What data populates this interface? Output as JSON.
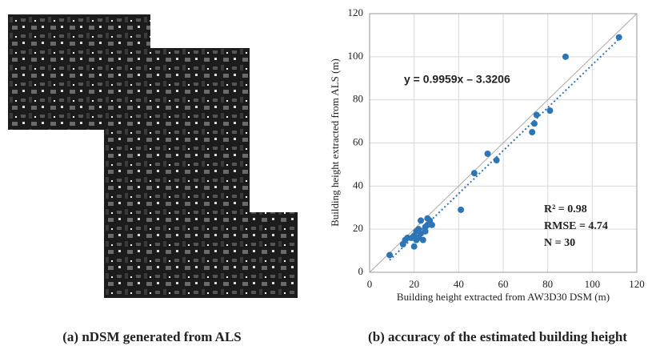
{
  "captions": [
    "(a) nDSM  generated from ALS",
    "(b) accuracy of the estimated building height"
  ],
  "chart_data": {
    "type": "scatter",
    "x_label": "Building height extracted from AW3D30 DSM (m)",
    "y_label": "Building height extracted from ALS (m)",
    "annotations": [
      "y = 0.9959x – 3.3206",
      "R² = 0.98",
      "RMSE = 4.74",
      "N = 30"
    ],
    "trendline": {
      "slope": 0.9959,
      "intercept": -3.3206,
      "color": "#2e75b6"
    },
    "series": [
      {
        "color": "#2e75b6",
        "x": [
          112,
          88,
          81,
          75,
          74,
          73,
          53,
          57,
          47,
          41,
          9,
          15,
          16,
          17,
          19,
          20,
          20,
          21,
          22,
          22,
          23,
          23,
          24,
          25,
          26,
          26,
          27,
          28,
          25,
          21
        ],
        "values": [
          109,
          100,
          75,
          73,
          69,
          65,
          55,
          52,
          46,
          29,
          8,
          13,
          15,
          16,
          16,
          12,
          17,
          19,
          20,
          16,
          24,
          18,
          15,
          19,
          25,
          22,
          24,
          22,
          21,
          15
        ]
      }
    ],
    "xlim": [
      0,
      120
    ],
    "ylim": [
      0,
      120
    ],
    "xticks": [
      0,
      20,
      40,
      60,
      80,
      100,
      120
    ],
    "yticks": [
      0,
      20,
      40,
      60,
      80,
      100,
      120
    ],
    "grid": true
  }
}
